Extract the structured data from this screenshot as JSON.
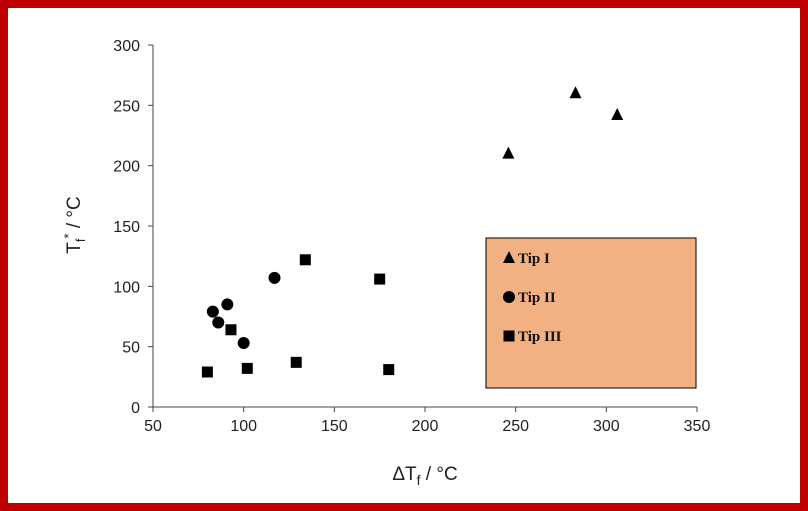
{
  "colors": {
    "frame": "#c00000",
    "legend_bg": "#f2b183",
    "marker": "#000000"
  },
  "chart_data": {
    "type": "scatter",
    "xlabel_main": "ΔT",
    "xlabel_sub": "f",
    "xlabel_unit": " / °C",
    "ylabel_main": "T",
    "ylabel_sub": "f",
    "ylabel_sup": "*",
    "ylabel_unit": " / °C",
    "xlim": [
      50,
      350
    ],
    "ylim": [
      0,
      300
    ],
    "xticks": [
      "50",
      "100",
      "150",
      "200",
      "250",
      "300",
      "350"
    ],
    "yticks": [
      "0",
      "50",
      "100",
      "150",
      "200",
      "250",
      "300"
    ],
    "grid": false,
    "legend_placement": "right",
    "series": [
      {
        "name": "Tip I",
        "marker": "triangle",
        "points": [
          [
            246,
            210
          ],
          [
            283,
            260
          ],
          [
            306,
            242
          ]
        ]
      },
      {
        "name": "Tip II",
        "marker": "circle",
        "points": [
          [
            83,
            79
          ],
          [
            86,
            70
          ],
          [
            91,
            85
          ],
          [
            100,
            53
          ],
          [
            117,
            107
          ]
        ]
      },
      {
        "name": "Tip III",
        "marker": "square",
        "points": [
          [
            80,
            29
          ],
          [
            93,
            64
          ],
          [
            102,
            32
          ],
          [
            129,
            37
          ],
          [
            134,
            122
          ],
          [
            175,
            106
          ],
          [
            180,
            31
          ]
        ]
      }
    ]
  }
}
